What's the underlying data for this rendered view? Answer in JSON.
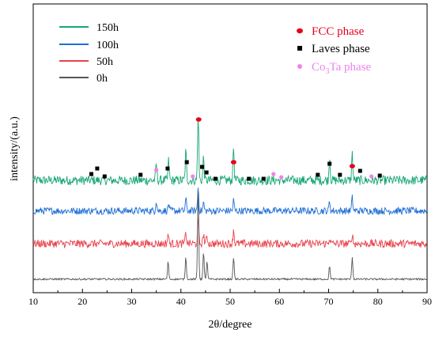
{
  "chart_data": {
    "type": "line",
    "xlabel": "2θ/degree",
    "ylabel": "intensity/(a.u.)",
    "xlim": [
      10,
      90
    ],
    "xticks": [
      "10",
      "20",
      "30",
      "40",
      "50",
      "60",
      "70",
      "80",
      "90"
    ],
    "series": [
      {
        "name": "150h",
        "color": "#17a673",
        "peaks": [
          [
            35.0,
            0.25
          ],
          [
            37.5,
            0.3
          ],
          [
            41.0,
            0.45
          ],
          [
            43.5,
            1.0
          ],
          [
            44.6,
            0.35
          ],
          [
            50.7,
            0.5
          ],
          [
            70.2,
            0.35
          ],
          [
            74.8,
            0.4
          ]
        ]
      },
      {
        "name": "100h",
        "color": "#1f6fd6",
        "peaks": [
          [
            35.0,
            0.45
          ],
          [
            37.5,
            0.3
          ],
          [
            41.0,
            0.5
          ],
          [
            43.5,
            1.0
          ],
          [
            44.6,
            0.35
          ],
          [
            50.7,
            0.45
          ],
          [
            70.2,
            0.4
          ],
          [
            74.8,
            0.55
          ]
        ]
      },
      {
        "name": "50h",
        "color": "#e8434c",
        "peaks": [
          [
            37.4,
            0.45
          ],
          [
            41.0,
            0.5
          ],
          [
            43.5,
            1.0
          ],
          [
            44.6,
            0.45
          ],
          [
            45.3,
            0.35
          ],
          [
            50.7,
            0.65
          ],
          [
            70.2,
            0.3
          ],
          [
            74.8,
            0.45
          ]
        ]
      },
      {
        "name": "0h",
        "color": "#555555",
        "peaks": [
          [
            37.4,
            0.2
          ],
          [
            41.0,
            0.25
          ],
          [
            43.5,
            1.0
          ],
          [
            44.6,
            0.3
          ],
          [
            45.3,
            0.2
          ],
          [
            50.7,
            0.25
          ],
          [
            70.2,
            0.15
          ],
          [
            74.8,
            0.25
          ]
        ]
      }
    ],
    "markers": {
      "fcc": [
        43.6,
        50.7,
        74.8
      ],
      "laves": [
        21.8,
        23.0,
        24.5,
        31.8,
        37.3,
        41.2,
        44.3,
        45.2,
        47.0,
        53.8,
        56.8,
        67.8,
        70.2,
        72.3,
        76.4,
        80.4
      ],
      "co3ta": [
        35.0,
        42.4,
        58.8,
        60.4,
        78.7
      ]
    },
    "phase_legend": [
      {
        "label": "FCC phase",
        "color": "#e8001c",
        "shape": "dot"
      },
      {
        "label": "Laves phase",
        "color": "#000000",
        "shape": "square"
      },
      {
        "label_main": "Co",
        "label_sub": "3",
        "label_rest": "Ta phase",
        "color": "#ee82ee",
        "shape": "dot"
      }
    ]
  }
}
